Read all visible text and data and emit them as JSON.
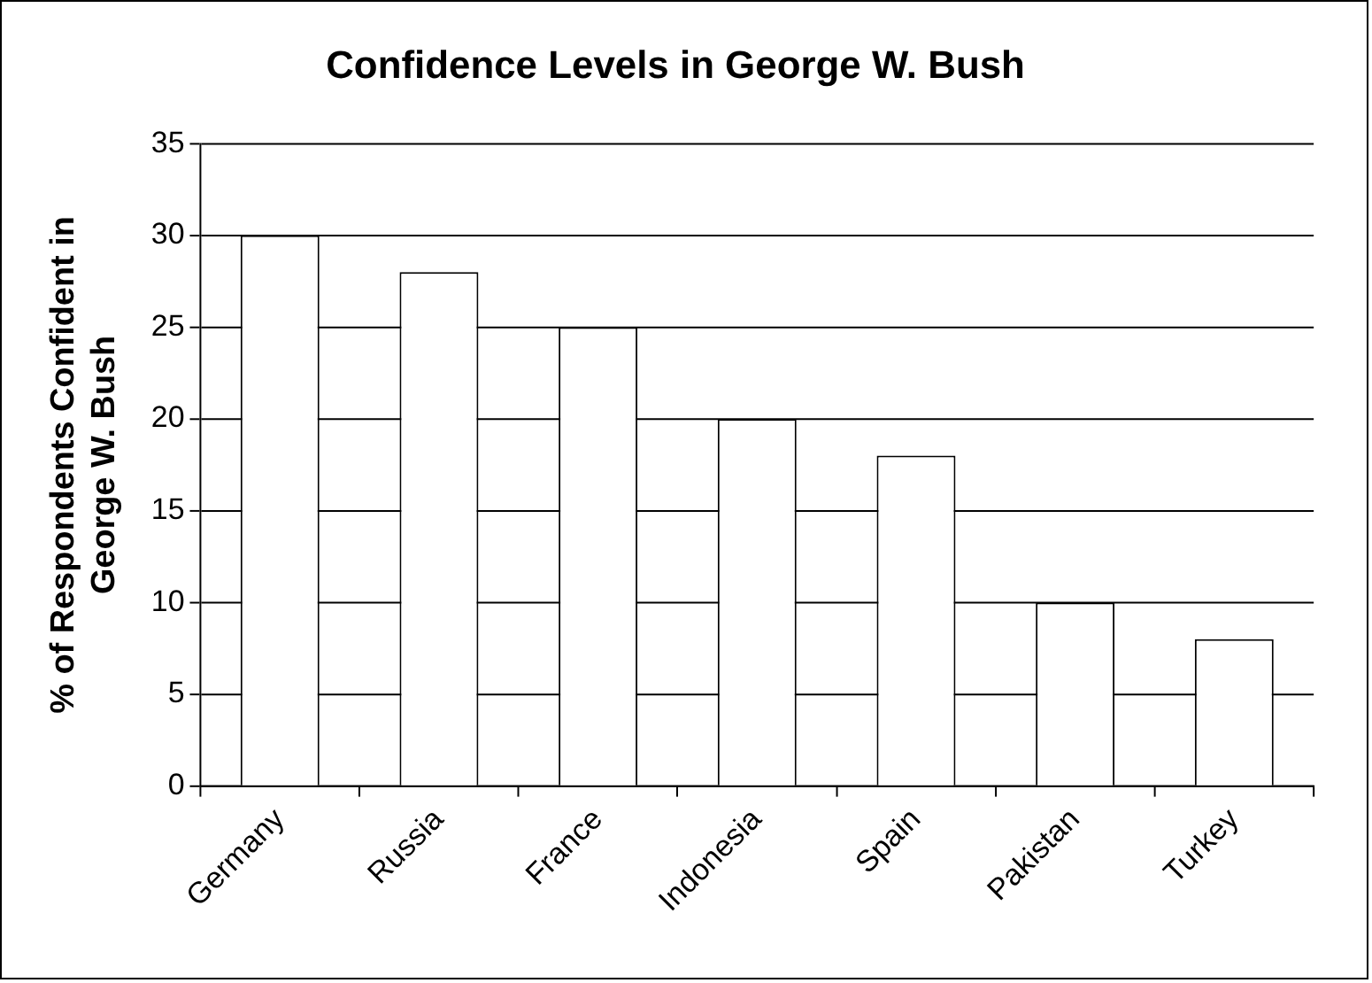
{
  "chart_data": {
    "type": "bar",
    "title": "Confidence Levels in George W. Bush",
    "ylabel": "% of Respondents Confident in\nGeorge W. Bush",
    "categories": [
      "Germany",
      "Russia",
      "France",
      "Indonesia",
      "Spain",
      "Pakistan",
      "Turkey"
    ],
    "values": [
      30,
      28,
      25,
      20,
      18,
      10,
      8
    ],
    "color": "#ffffff",
    "ylim": [
      0,
      35
    ],
    "yticks": [
      0,
      5,
      10,
      15,
      20,
      25,
      30,
      35
    ],
    "grid": "y",
    "legend": false
  }
}
